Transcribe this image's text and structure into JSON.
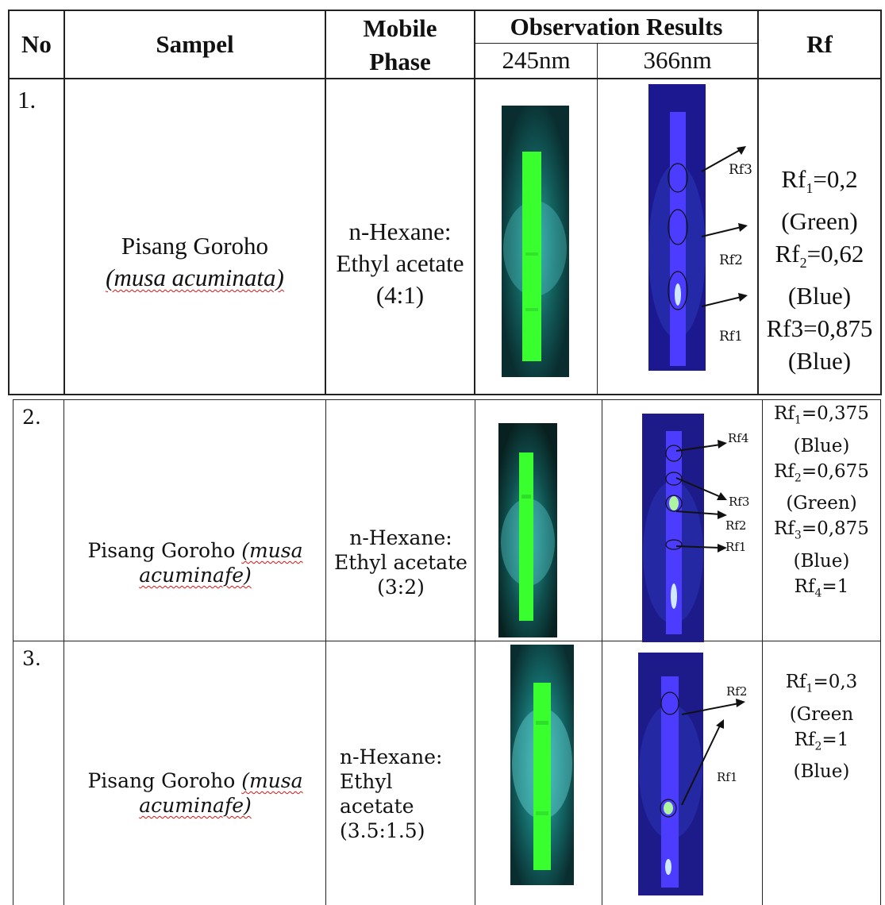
{
  "table": {
    "headers": {
      "no": "No",
      "sample": "Sampel",
      "mobile_line1": "Mobile",
      "mobile_line2": "Phase",
      "observation": "Observation Results",
      "nm245": "245nm",
      "nm366": "366nm",
      "rf": "Rf"
    },
    "rows": [
      {
        "no": "1.",
        "sample_main": "Pisang Goroho",
        "sample_sci": "(musa acuminata)",
        "mobile": [
          "n-Hexane:",
          "Ethyl acetate",
          "(4:1)"
        ],
        "rf_labels": [
          "Rf3",
          "Rf2",
          "Rf1"
        ],
        "rf_values": [
          "(Green)",
          "Rf2=0,62",
          "(Blue)",
          "Rf3=0,875",
          "(Blue)"
        ],
        "rf_first": "Rf",
        "rf_first_sub": "1",
        "rf_first_val": "=0,2"
      },
      {
        "no": "2.",
        "sample_main": "Pisang Goroho",
        "sample_sci_a": "(musa",
        "sample_sci_b": "acuminafe)",
        "mobile": [
          "n-Hexane:",
          "Ethyl acetate",
          "(3:2)"
        ],
        "rf_labels": [
          "Rf4",
          "Rf3",
          "Rf2",
          "Rf1"
        ],
        "rf_values": [
          {
            "pre": "Rf",
            "sub": "1",
            "post": "=0,375"
          },
          {
            "text": "(Blue)"
          },
          {
            "pre": "Rf",
            "sub": "2",
            "post": "=0,675"
          },
          {
            "text": "(Green)"
          },
          {
            "pre": "Rf",
            "sub": "3",
            "post": "=0,875"
          },
          {
            "text": "(Blue)"
          },
          {
            "pre": "Rf",
            "sub": "4",
            "post": "=1"
          }
        ]
      },
      {
        "no": "3.",
        "sample_main": "Pisang Goroho",
        "sample_sci_a": "(musa",
        "sample_sci_b": "acuminafe)",
        "mobile": [
          "n-Hexane:",
          "Ethyl",
          "acetate",
          "(3.5:1.5)"
        ],
        "rf_labels": [
          "Rf2",
          "Rf1"
        ],
        "rf_values": [
          {
            "pre": "Rf",
            "sub": "1",
            "post": "=0,3"
          },
          {
            "text": "(Green"
          },
          {
            "pre": "Rf",
            "sub": "2",
            "post": "=1"
          },
          {
            "text": "(Blue)"
          }
        ]
      }
    ]
  },
  "colors": {
    "uv254_bg": "#0b3a3a",
    "uv254_strip": "#39ff2e",
    "uv366_bg": "#1d1a8a",
    "uv366_strip": "#4b3cff",
    "spot_green": "#9cff9c",
    "spot_blue": "#bfe7ff",
    "annotation_red": "#dd1111"
  }
}
